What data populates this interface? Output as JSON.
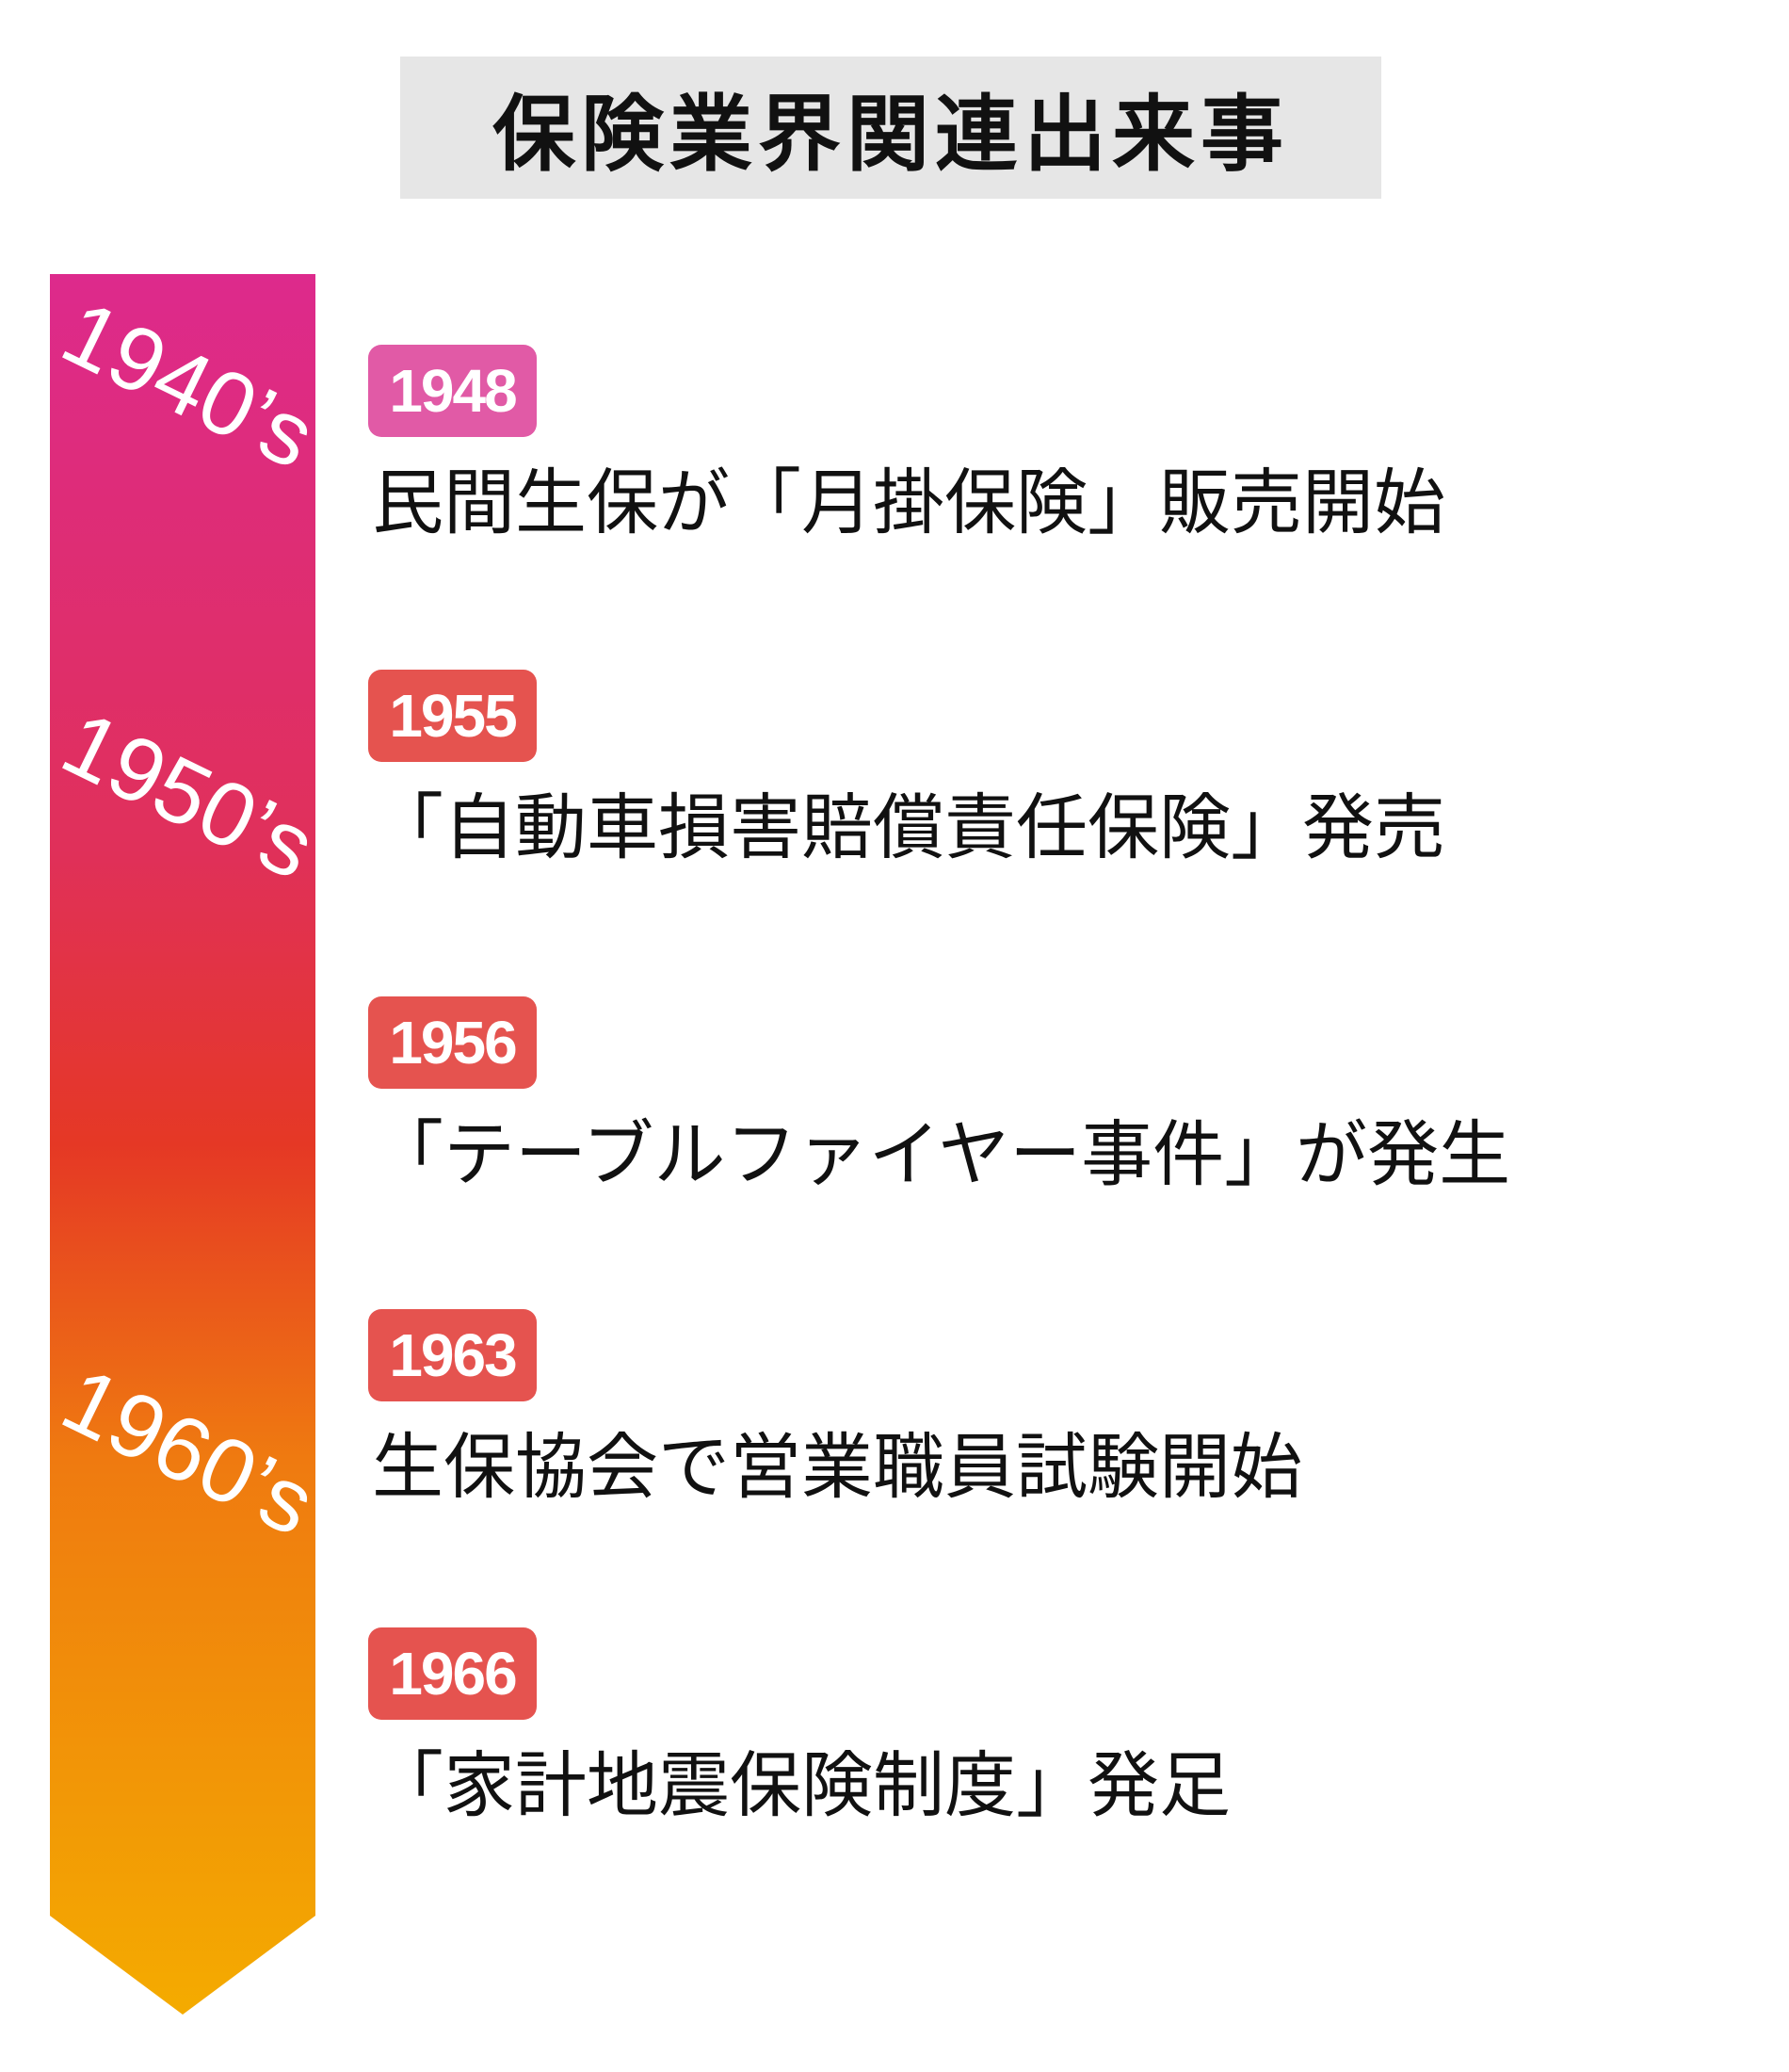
{
  "title": "保険業界関連出来事",
  "decades": [
    "1940’s",
    "1950’s",
    "1960’s"
  ],
  "events": [
    {
      "year": "1948",
      "text": "民間生保が「月掛保険」販売開始",
      "color": "#e15aa6"
    },
    {
      "year": "1955",
      "text": "「自動車損害賠償責任保険」発売",
      "color": "#e5534f"
    },
    {
      "year": "1956",
      "text": "「テーブルファイヤー事件」が発生",
      "color": "#e5534f"
    },
    {
      "year": "1963",
      "text": "生保協会で営業職員試験開始",
      "color": "#e5534f"
    },
    {
      "year": "1966",
      "text": "「家計地震保険制度」発足",
      "color": "#e5534f"
    }
  ]
}
